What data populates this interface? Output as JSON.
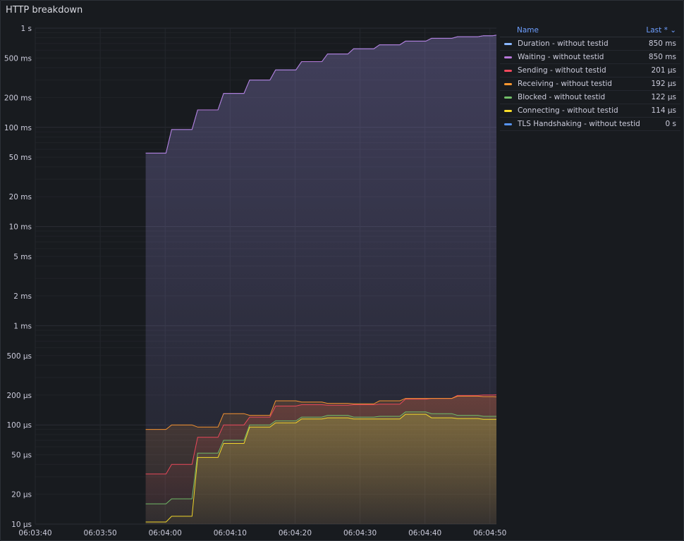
{
  "panel": {
    "title": "HTTP breakdown"
  },
  "legend": {
    "col_name": "Name",
    "col_last": "Last * ⌄",
    "rows": [
      {
        "name": "Duration - without testid",
        "value": "850 ms",
        "color": "#8ab8ff"
      },
      {
        "name": "Waiting - without testid",
        "value": "850 ms",
        "color": "#b877d9"
      },
      {
        "name": "Sending - without testid",
        "value": "201 µs",
        "color": "#f2495c"
      },
      {
        "name": "Receiving - without testid",
        "value": "192 µs",
        "color": "#ff9830"
      },
      {
        "name": "Blocked - without testid",
        "value": "122 µs",
        "color": "#73bf69"
      },
      {
        "name": "Connecting - without testid",
        "value": "114 µs",
        "color": "#fade2a"
      },
      {
        "name": "TLS Handshaking - without testid",
        "value": "0 s",
        "color": "#5794f2"
      }
    ]
  },
  "chart_data": {
    "type": "line",
    "title": "HTTP breakdown",
    "y_scale": "log",
    "y_unit": "seconds",
    "ylim": [
      1e-05,
      1
    ],
    "y_ticks": [
      {
        "v": 1,
        "label": "1 s"
      },
      {
        "v": 0.5,
        "label": "500 ms"
      },
      {
        "v": 0.2,
        "label": "200 ms"
      },
      {
        "v": 0.1,
        "label": "100 ms"
      },
      {
        "v": 0.05,
        "label": "50 ms"
      },
      {
        "v": 0.02,
        "label": "20 ms"
      },
      {
        "v": 0.01,
        "label": "10 ms"
      },
      {
        "v": 0.005,
        "label": "5 ms"
      },
      {
        "v": 0.002,
        "label": "2 ms"
      },
      {
        "v": 0.001,
        "label": "1 ms"
      },
      {
        "v": 0.0005,
        "label": "500 µs"
      },
      {
        "v": 0.0002,
        "label": "200 µs"
      },
      {
        "v": 0.0001,
        "label": "100 µs"
      },
      {
        "v": 5e-05,
        "label": "50 µs"
      },
      {
        "v": 2e-05,
        "label": "20 µs"
      },
      {
        "v": 1e-05,
        "label": "10 µs"
      }
    ],
    "x_unit": "time",
    "xlim": [
      "06:03:40",
      "06:04:51"
    ],
    "x_ticks": [
      "06:03:40",
      "06:03:50",
      "06:04:00",
      "06:04:10",
      "06:04:20",
      "06:04:30",
      "06:04:40",
      "06:04:50"
    ],
    "grid": true,
    "legend_position": "right",
    "x": [
      "06:03:57",
      "06:04:01",
      "06:04:05",
      "06:04:09",
      "06:04:13",
      "06:04:17",
      "06:04:21",
      "06:04:25",
      "06:04:29",
      "06:04:33",
      "06:04:37",
      "06:04:41",
      "06:04:45",
      "06:04:49",
      "06:04:51"
    ],
    "series": [
      {
        "name": "Duration - without testid",
        "color": "#8ab8ff",
        "values": [
          0.055,
          0.095,
          0.15,
          0.22,
          0.3,
          0.38,
          0.46,
          0.55,
          0.62,
          0.68,
          0.74,
          0.79,
          0.82,
          0.84,
          0.85
        ]
      },
      {
        "name": "Waiting - without testid",
        "color": "#b877d9",
        "values": [
          0.055,
          0.095,
          0.15,
          0.22,
          0.3,
          0.38,
          0.46,
          0.55,
          0.62,
          0.68,
          0.74,
          0.79,
          0.82,
          0.84,
          0.85
        ]
      },
      {
        "name": "Sending - without testid",
        "color": "#f2495c",
        "values": [
          3.2e-05,
          4e-05,
          7.5e-05,
          0.0001,
          0.00012,
          0.000155,
          0.00016,
          0.000158,
          0.00016,
          0.000162,
          0.000182,
          0.000185,
          0.000198,
          0.0002,
          0.000201
        ]
      },
      {
        "name": "Receiving - without testid",
        "color": "#ff9830",
        "values": [
          9e-05,
          0.0001,
          9.5e-05,
          0.00013,
          0.000125,
          0.000175,
          0.00017,
          0.000165,
          0.000163,
          0.000175,
          0.000185,
          0.000185,
          0.000195,
          0.000193,
          0.000192
        ]
      },
      {
        "name": "Blocked - without testid",
        "color": "#73bf69",
        "values": [
          1.6e-05,
          1.8e-05,
          5.2e-05,
          7e-05,
          0.0001,
          0.00011,
          0.00012,
          0.000125,
          0.00012,
          0.000122,
          0.000135,
          0.00013,
          0.000125,
          0.000122,
          0.000122
        ]
      },
      {
        "name": "Connecting - without testid",
        "color": "#fade2a",
        "values": [
          1.05e-05,
          1.2e-05,
          4.7e-05,
          6.5e-05,
          9.5e-05,
          0.000105,
          0.000115,
          0.000118,
          0.000115,
          0.000115,
          0.000128,
          0.000118,
          0.000116,
          0.000114,
          0.000114
        ]
      },
      {
        "name": "TLS Handshaking - without testid",
        "color": "#5794f2",
        "values": [
          0,
          0,
          0,
          0,
          0,
          0,
          0,
          0,
          0,
          0,
          0,
          0,
          0,
          0,
          0
        ]
      }
    ]
  }
}
